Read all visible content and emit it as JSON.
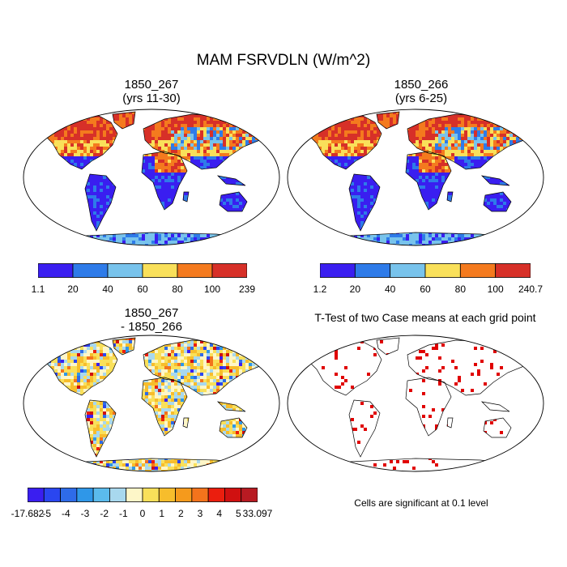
{
  "main_title": "MAM FSRVDLN (W/m^2)",
  "panels": [
    {
      "id": "p1",
      "title_line1": "1850_267",
      "title_line2": "(yrs 11-30)"
    },
    {
      "id": "p2",
      "title_line1": "1850_266",
      "title_line2": "(yrs 6-25)"
    },
    {
      "id": "p3",
      "title_line1": "1850_267",
      "title_line2": "- 1850_266"
    },
    {
      "id": "p4",
      "title_line1": "T-Test of two Case means at each grid point",
      "title_line2": ""
    }
  ],
  "colorbars": {
    "cb1": {
      "colors": [
        "#3a1ef0",
        "#2e7be9",
        "#78c3ec",
        "#f9e05a",
        "#f47a1e",
        "#d73028"
      ],
      "labels": [
        "1.1",
        "20",
        "40",
        "60",
        "80",
        "100",
        "239"
      ]
    },
    "cb2": {
      "colors": [
        "#3a1ef0",
        "#2e7be9",
        "#78c3ec",
        "#f9e05a",
        "#f47a1e",
        "#d73028"
      ],
      "labels": [
        "1.2",
        "20",
        "40",
        "60",
        "80",
        "100",
        "240.7"
      ]
    },
    "cb3": {
      "colors": [
        "#3a1ef0",
        "#2a46f0",
        "#2e6be8",
        "#2f97e8",
        "#5bbbec",
        "#a8d8ee",
        "#fdf6c8",
        "#f9e05a",
        "#f7bd2c",
        "#f59a1c",
        "#f3731c",
        "#eb1e0e",
        "#d01010",
        "#b81a22"
      ],
      "labels": [
        "-17.682",
        "-5",
        "-4",
        "-3",
        "-2",
        "-1",
        "0",
        "1",
        "2",
        "3",
        "4",
        "5",
        "33.097"
      ]
    }
  },
  "significance_note": "Cells are significant at 0.1 level",
  "legend_colors": {
    "significant": "#e00000",
    "coast": "#000000"
  }
}
